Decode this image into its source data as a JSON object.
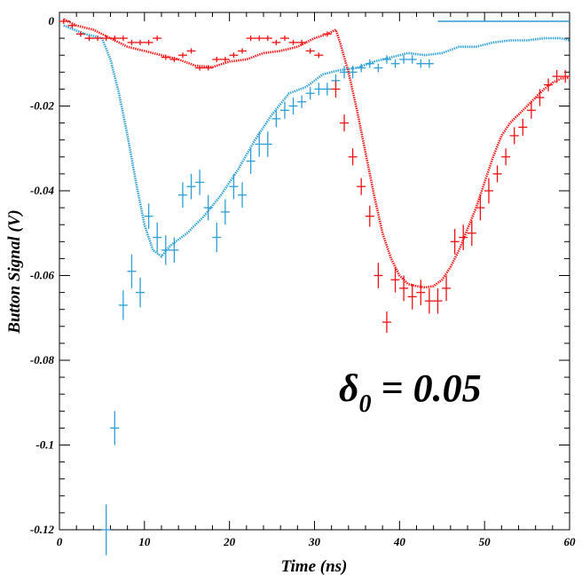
{
  "chart_data": {
    "type": "scatter",
    "title": "",
    "xlabel": "Time (ns)",
    "ylabel": "Button Signal (V)",
    "xlim": [
      0,
      60
    ],
    "ylim": [
      -0.12,
      0.002
    ],
    "x_ticks": [
      0,
      10,
      20,
      30,
      40,
      50,
      60
    ],
    "x_tick_labels": [
      "0",
      "10",
      "20",
      "30",
      "40",
      "50",
      "60"
    ],
    "y_ticks": [
      0,
      -0.02,
      -0.04,
      -0.06,
      -0.08,
      -0.1,
      -0.12
    ],
    "y_tick_labels": [
      "0",
      "-0.02",
      "-0.04",
      "-0.06",
      "-0.08",
      "-0.1",
      "-0.12"
    ],
    "grid": false,
    "annotation": {
      "symbol": "δ",
      "subscript": "0",
      "text": " = 0.05"
    },
    "colors": {
      "blue": "#2a9fd6",
      "red": "#ee1111"
    },
    "series": [
      {
        "color": "blue",
        "style": "dotted-curve",
        "x": [
          0.5,
          3,
          5,
          6,
          7,
          8,
          9,
          10,
          11,
          12,
          13,
          15,
          17,
          19,
          21,
          23,
          25,
          27,
          29,
          31,
          33,
          35,
          37,
          39,
          41,
          43,
          45,
          47,
          49,
          51,
          53,
          55,
          57,
          59,
          60
        ],
        "y": [
          -0.001,
          -0.003,
          -0.004,
          -0.009,
          -0.017,
          -0.027,
          -0.038,
          -0.048,
          -0.054,
          -0.0555,
          -0.053,
          -0.05,
          -0.046,
          -0.041,
          -0.035,
          -0.028,
          -0.022,
          -0.017,
          -0.0155,
          -0.0125,
          -0.0115,
          -0.011,
          -0.0095,
          -0.0085,
          -0.0075,
          -0.008,
          -0.0075,
          -0.006,
          -0.006,
          -0.005,
          -0.0045,
          -0.0045,
          -0.004,
          -0.004,
          -0.0045
        ]
      },
      {
        "color": "blue",
        "style": "error-bars",
        "x": [
          2.5,
          3.5,
          5.5,
          6.5,
          7.5,
          8.5,
          9.5,
          10.5,
          11.5,
          12.5,
          13.5,
          14.5,
          15.5,
          16.5,
          17.5,
          18.5,
          19.5,
          20.5,
          21.5,
          22.5,
          23.5,
          24.5,
          25.5,
          26.5,
          27.5,
          28.5,
          29.5,
          30.5,
          31.5,
          32.5,
          33.5,
          34.5,
          35.5,
          36.5,
          37.5,
          38.5,
          39.5,
          40.5,
          41.5,
          42.5,
          43.5
        ],
        "y": [
          -0.003,
          -0.004,
          -0.12,
          -0.096,
          -0.067,
          -0.059,
          -0.064,
          -0.046,
          -0.051,
          -0.054,
          -0.054,
          -0.041,
          -0.039,
          -0.038,
          -0.044,
          -0.051,
          -0.045,
          -0.039,
          -0.041,
          -0.033,
          -0.029,
          -0.029,
          -0.023,
          -0.021,
          -0.02,
          -0.019,
          -0.017,
          -0.016,
          -0.016,
          -0.014,
          -0.012,
          -0.012,
          -0.011,
          -0.01,
          -0.011,
          -0.009,
          -0.01,
          -0.009,
          -0.009,
          -0.01,
          -0.01
        ],
        "err": [
          0.0005,
          0.0005,
          0.006,
          0.004,
          0.0035,
          0.004,
          0.0035,
          0.003,
          0.0035,
          0.0035,
          0.003,
          0.003,
          0.003,
          0.003,
          0.003,
          0.0035,
          0.003,
          0.003,
          0.003,
          0.003,
          0.003,
          0.003,
          0.002,
          0.002,
          0.002,
          0.0015,
          0.0015,
          0.0015,
          0.0015,
          0.0015,
          0.0015,
          0.0015,
          0.001,
          0.001,
          0.001,
          0.001,
          0.001,
          0.001,
          0.001,
          0.001,
          0.001
        ]
      },
      {
        "color": "blue",
        "style": "baseline-line",
        "x": [
          44.5,
          60
        ],
        "y": [
          0,
          0
        ]
      },
      {
        "color": "red",
        "style": "dotted-curve",
        "x": [
          0.5,
          2,
          4,
          6,
          8,
          10,
          12,
          14,
          16,
          18,
          20,
          22,
          24,
          26,
          28,
          30,
          31.5,
          32.5,
          33,
          34,
          35,
          36,
          37,
          38,
          39,
          40,
          41,
          42,
          43,
          44,
          45,
          46,
          47,
          48,
          49,
          50,
          51,
          52,
          53,
          54,
          55,
          56,
          57,
          58,
          59,
          60
        ],
        "y": [
          0.0005,
          -0.001,
          -0.002,
          -0.004,
          -0.006,
          -0.007,
          -0.008,
          -0.009,
          -0.0105,
          -0.0108,
          -0.0095,
          -0.009,
          -0.0075,
          -0.007,
          -0.006,
          -0.004,
          -0.003,
          -0.002,
          -0.005,
          -0.012,
          -0.021,
          -0.031,
          -0.041,
          -0.05,
          -0.056,
          -0.06,
          -0.062,
          -0.0625,
          -0.0628,
          -0.0625,
          -0.061,
          -0.058,
          -0.054,
          -0.049,
          -0.044,
          -0.038,
          -0.032,
          -0.027,
          -0.024,
          -0.022,
          -0.02,
          -0.018,
          -0.016,
          -0.0145,
          -0.0135,
          -0.0133
        ]
      },
      {
        "color": "red",
        "style": "error-bars",
        "x": [
          0.5,
          1.5,
          2.5,
          3.5,
          4.5,
          5.5,
          6.5,
          7.5,
          8.5,
          9.5,
          10.5,
          11.5,
          12.5,
          13.5,
          14.5,
          15.5,
          16.5,
          17.5,
          18.5,
          19.5,
          20.5,
          21.5,
          22.5,
          23.5,
          24.5,
          25.5,
          26.5,
          27.5,
          28.5,
          29.5,
          30.5,
          31.5,
          32.5,
          33.5,
          34.5,
          35.5,
          36.5,
          37.5,
          38.5,
          39.5,
          40.5,
          41.5,
          42.5,
          43.5,
          44.5,
          45.5,
          46.5,
          47.5,
          48.5,
          49.5,
          50.5,
          51.5,
          52.5,
          53.5,
          54.5,
          55.5,
          56.5,
          57.5,
          58.5,
          59.5
        ],
        "y": [
          0,
          -0.001,
          -0.003,
          -0.004,
          -0.004,
          -0.004,
          -0.004,
          -0.004,
          -0.005,
          -0.005,
          -0.005,
          -0.004,
          -0.0085,
          -0.009,
          -0.008,
          -0.007,
          -0.011,
          -0.011,
          -0.009,
          -0.009,
          -0.008,
          -0.007,
          -0.004,
          -0.004,
          -0.004,
          -0.005,
          -0.004,
          -0.005,
          -0.005,
          -0.007,
          -0.008,
          -0.003,
          -0.016,
          -0.024,
          -0.032,
          -0.039,
          -0.046,
          -0.06,
          -0.071,
          -0.061,
          -0.063,
          -0.065,
          -0.064,
          -0.066,
          -0.066,
          -0.063,
          -0.052,
          -0.051,
          -0.05,
          -0.044,
          -0.04,
          -0.036,
          -0.032,
          -0.027,
          -0.025,
          -0.021,
          -0.018,
          -0.015,
          -0.013,
          -0.013
        ],
        "err": [
          0.0005,
          0.0005,
          0.0005,
          0.0005,
          0.0005,
          0.0005,
          0.0005,
          0.0005,
          0.0005,
          0.0005,
          0.0005,
          0.0005,
          0.0005,
          0.0005,
          0.0005,
          0.0005,
          0.0005,
          0.0005,
          0.0005,
          0.0005,
          0.0005,
          0.0005,
          0.0005,
          0.0005,
          0.0005,
          0.0005,
          0.0005,
          0.0005,
          0.0005,
          0.0005,
          0.0005,
          0.0005,
          0.002,
          0.002,
          0.002,
          0.002,
          0.0025,
          0.003,
          0.0025,
          0.003,
          0.003,
          0.003,
          0.003,
          0.003,
          0.003,
          0.003,
          0.003,
          0.003,
          0.003,
          0.003,
          0.003,
          0.002,
          0.002,
          0.002,
          0.002,
          0.002,
          0.002,
          0.0015,
          0.0015,
          0.0015
        ]
      }
    ]
  }
}
